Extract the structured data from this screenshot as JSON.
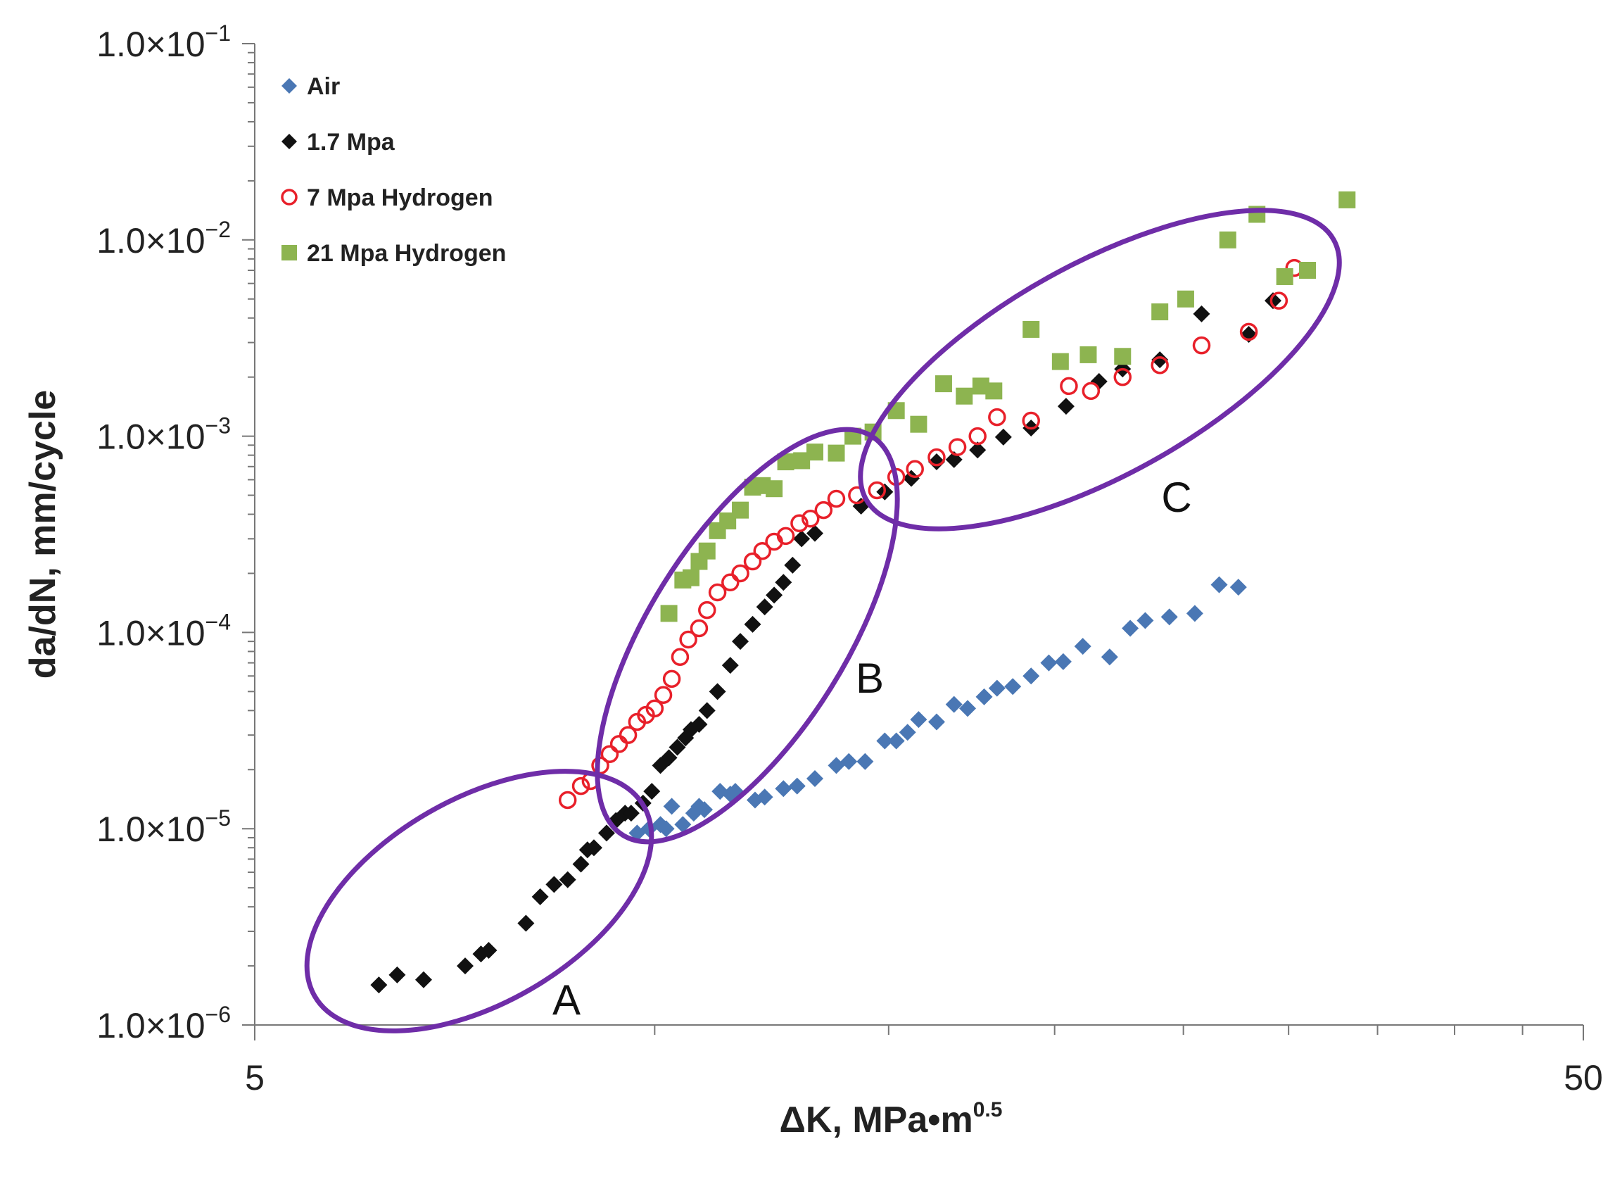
{
  "chart_data": {
    "type": "scatter",
    "x_scale": "log",
    "y_scale": "log",
    "xlabel": "ΔK, MPa•m",
    "xlabel_superscript": "0.5",
    "ylabel": "da/dN, mm/cycle",
    "xlim": [
      5,
      50
    ],
    "ylim": [
      1e-06,
      0.1
    ],
    "x_tick_labels": [
      {
        "value": 5,
        "label": "5"
      },
      {
        "value": 50,
        "label": "50"
      }
    ],
    "y_tick_labels": [
      {
        "value": 1e-06,
        "mantissa": "1.0×10",
        "exp": "−6"
      },
      {
        "value": 1e-05,
        "mantissa": "1.0×10",
        "exp": "−5"
      },
      {
        "value": 0.0001,
        "mantissa": "1.0×10",
        "exp": "−4"
      },
      {
        "value": 0.001,
        "mantissa": "1.0×10",
        "exp": "−3"
      },
      {
        "value": 0.01,
        "mantissa": "1.0×10",
        "exp": "−2"
      },
      {
        "value": 0.1,
        "mantissa": "1.0×10",
        "exp": "−1"
      }
    ],
    "legend_position": "top-left",
    "series": [
      {
        "name": "Air",
        "marker": "diamond",
        "color": "#4a77b4",
        "filled": true,
        "points": [
          [
            9.7,
            9.5e-06
          ],
          [
            9.9,
            1e-05
          ],
          [
            10.1,
            1.05e-05
          ],
          [
            10.2,
            1e-05
          ],
          [
            10.3,
            1.3e-05
          ],
          [
            10.5,
            1.05e-05
          ],
          [
            10.7,
            1.2e-05
          ],
          [
            10.8,
            1.3e-05
          ],
          [
            10.9,
            1.25e-05
          ],
          [
            11.2,
            1.55e-05
          ],
          [
            11.4,
            1.5e-05
          ],
          [
            11.5,
            1.55e-05
          ],
          [
            11.9,
            1.4e-05
          ],
          [
            12.1,
            1.45e-05
          ],
          [
            12.5,
            1.6e-05
          ],
          [
            12.8,
            1.65e-05
          ],
          [
            13.2,
            1.8e-05
          ],
          [
            13.7,
            2.1e-05
          ],
          [
            14.0,
            2.2e-05
          ],
          [
            14.4,
            2.2e-05
          ],
          [
            14.9,
            2.8e-05
          ],
          [
            15.2,
            2.8e-05
          ],
          [
            15.5,
            3.1e-05
          ],
          [
            15.8,
            3.6e-05
          ],
          [
            16.3,
            3.5e-05
          ],
          [
            16.8,
            4.3e-05
          ],
          [
            17.2,
            4.1e-05
          ],
          [
            17.7,
            4.7e-05
          ],
          [
            18.1,
            5.2e-05
          ],
          [
            18.6,
            5.3e-05
          ],
          [
            19.2,
            6e-05
          ],
          [
            19.8,
            7e-05
          ],
          [
            20.3,
            7.1e-05
          ],
          [
            21.0,
            8.5e-05
          ],
          [
            22.0,
            7.5e-05
          ],
          [
            22.8,
            0.000105
          ],
          [
            23.4,
            0.000115
          ],
          [
            24.4,
            0.00012
          ],
          [
            25.5,
            0.000125
          ],
          [
            26.6,
            0.000175
          ],
          [
            27.5,
            0.00017
          ]
        ]
      },
      {
        "name": "1.7 Mpa",
        "marker": "diamond",
        "color": "#111111",
        "filled": true,
        "points": [
          [
            6.2,
            1.6e-06
          ],
          [
            6.4,
            1.8e-06
          ],
          [
            6.7,
            1.7e-06
          ],
          [
            7.2,
            2e-06
          ],
          [
            7.4,
            2.3e-06
          ],
          [
            7.5,
            2.4e-06
          ],
          [
            8.0,
            3.3e-06
          ],
          [
            8.2,
            4.5e-06
          ],
          [
            8.4,
            5.2e-06
          ],
          [
            8.6,
            5.5e-06
          ],
          [
            8.8,
            6.6e-06
          ],
          [
            8.9,
            7.8e-06
          ],
          [
            9.0,
            8e-06
          ],
          [
            9.2,
            9.5e-06
          ],
          [
            9.35,
            1.1e-05
          ],
          [
            9.5,
            1.2e-05
          ],
          [
            9.6,
            1.2e-05
          ],
          [
            9.8,
            1.35e-05
          ],
          [
            9.95,
            1.55e-05
          ],
          [
            10.1,
            2.1e-05
          ],
          [
            10.25,
            2.3e-05
          ],
          [
            10.4,
            2.6e-05
          ],
          [
            10.55,
            2.9e-05
          ],
          [
            10.65,
            3.2e-05
          ],
          [
            10.8,
            3.4e-05
          ],
          [
            10.95,
            4e-05
          ],
          [
            11.15,
            5e-05
          ],
          [
            11.4,
            6.8e-05
          ],
          [
            11.6,
            9e-05
          ],
          [
            11.85,
            0.00011
          ],
          [
            12.1,
            0.000135
          ],
          [
            12.3,
            0.000155
          ],
          [
            12.5,
            0.00018
          ],
          [
            12.7,
            0.00022
          ],
          [
            12.9,
            0.0003
          ],
          [
            13.2,
            0.00032
          ],
          [
            14.3,
            0.00044
          ],
          [
            14.9,
            0.00052
          ],
          [
            15.6,
            0.00061
          ],
          [
            16.3,
            0.00074
          ],
          [
            16.8,
            0.00076
          ],
          [
            17.5,
            0.00085
          ],
          [
            18.3,
            0.00099
          ],
          [
            19.2,
            0.0011
          ],
          [
            20.4,
            0.00142
          ],
          [
            21.6,
            0.0019
          ],
          [
            22.5,
            0.0022
          ],
          [
            24.0,
            0.00245
          ],
          [
            25.8,
            0.0042
          ],
          [
            28.0,
            0.0033
          ],
          [
            29.2,
            0.0049
          ]
        ]
      },
      {
        "name": "7 Mpa Hydrogen",
        "marker": "circle",
        "color": "#e8202a",
        "filled": false,
        "points": [
          [
            8.6,
            1.4e-05
          ],
          [
            8.8,
            1.65e-05
          ],
          [
            8.95,
            1.75e-05
          ],
          [
            9.1,
            2.1e-05
          ],
          [
            9.25,
            2.4e-05
          ],
          [
            9.4,
            2.7e-05
          ],
          [
            9.55,
            3e-05
          ],
          [
            9.7,
            3.5e-05
          ],
          [
            9.85,
            3.8e-05
          ],
          [
            10.0,
            4.1e-05
          ],
          [
            10.15,
            4.8e-05
          ],
          [
            10.3,
            5.8e-05
          ],
          [
            10.45,
            7.5e-05
          ],
          [
            10.6,
            9.2e-05
          ],
          [
            10.8,
            0.000105
          ],
          [
            10.95,
            0.00013
          ],
          [
            11.15,
            0.00016
          ],
          [
            11.4,
            0.00018
          ],
          [
            11.6,
            0.0002
          ],
          [
            11.85,
            0.00023
          ],
          [
            12.05,
            0.00026
          ],
          [
            12.3,
            0.00029
          ],
          [
            12.55,
            0.00031
          ],
          [
            12.85,
            0.00036
          ],
          [
            13.1,
            0.00038
          ],
          [
            13.4,
            0.00042
          ],
          [
            13.7,
            0.00048
          ],
          [
            14.2,
            0.0005
          ],
          [
            14.7,
            0.00053
          ],
          [
            15.2,
            0.00062
          ],
          [
            15.7,
            0.00068
          ],
          [
            16.3,
            0.00078
          ],
          [
            16.9,
            0.00088
          ],
          [
            17.5,
            0.001
          ],
          [
            18.1,
            0.00125
          ],
          [
            19.2,
            0.0012
          ],
          [
            20.5,
            0.0018
          ],
          [
            21.3,
            0.0017
          ],
          [
            22.5,
            0.002
          ],
          [
            24.0,
            0.0023
          ],
          [
            25.8,
            0.0029
          ],
          [
            28.0,
            0.0034
          ],
          [
            29.5,
            0.0049
          ],
          [
            30.3,
            0.0072
          ]
        ]
      },
      {
        "name": "21 Mpa Hydrogen",
        "marker": "square",
        "color": "#8db450",
        "filled": true,
        "points": [
          [
            10.25,
            0.000125
          ],
          [
            10.5,
            0.000185
          ],
          [
            10.65,
            0.00019
          ],
          [
            10.8,
            0.00023
          ],
          [
            10.95,
            0.00026
          ],
          [
            11.15,
            0.00033
          ],
          [
            11.35,
            0.00037
          ],
          [
            11.6,
            0.00042
          ],
          [
            11.85,
            0.00055
          ],
          [
            12.05,
            0.00056
          ],
          [
            12.3,
            0.00054
          ],
          [
            12.55,
            0.00074
          ],
          [
            12.9,
            0.00075
          ],
          [
            13.2,
            0.00083
          ],
          [
            13.7,
            0.00082
          ],
          [
            14.1,
            0.001
          ],
          [
            14.6,
            0.00105
          ],
          [
            15.2,
            0.00135
          ],
          [
            15.8,
            0.00115
          ],
          [
            16.5,
            0.00185
          ],
          [
            17.1,
            0.0016
          ],
          [
            17.6,
            0.0018
          ],
          [
            18.0,
            0.0017
          ],
          [
            19.2,
            0.0035
          ],
          [
            20.2,
            0.0024
          ],
          [
            21.2,
            0.0026
          ],
          [
            22.5,
            0.00255
          ],
          [
            24.0,
            0.0043
          ],
          [
            25.1,
            0.005
          ],
          [
            27.0,
            0.01
          ],
          [
            28.4,
            0.0135
          ],
          [
            29.8,
            0.0065
          ],
          [
            31.0,
            0.007
          ],
          [
            33.2,
            0.016
          ]
        ]
      }
    ],
    "regions": [
      {
        "label": "A",
        "x_center": 7.6,
        "y_center": 3.2e-06
      },
      {
        "label": "B",
        "x_center": 11.5,
        "y_center": 0.00016
      },
      {
        "label": "C",
        "x_center": 20.0,
        "y_center": 0.0014
      }
    ]
  }
}
